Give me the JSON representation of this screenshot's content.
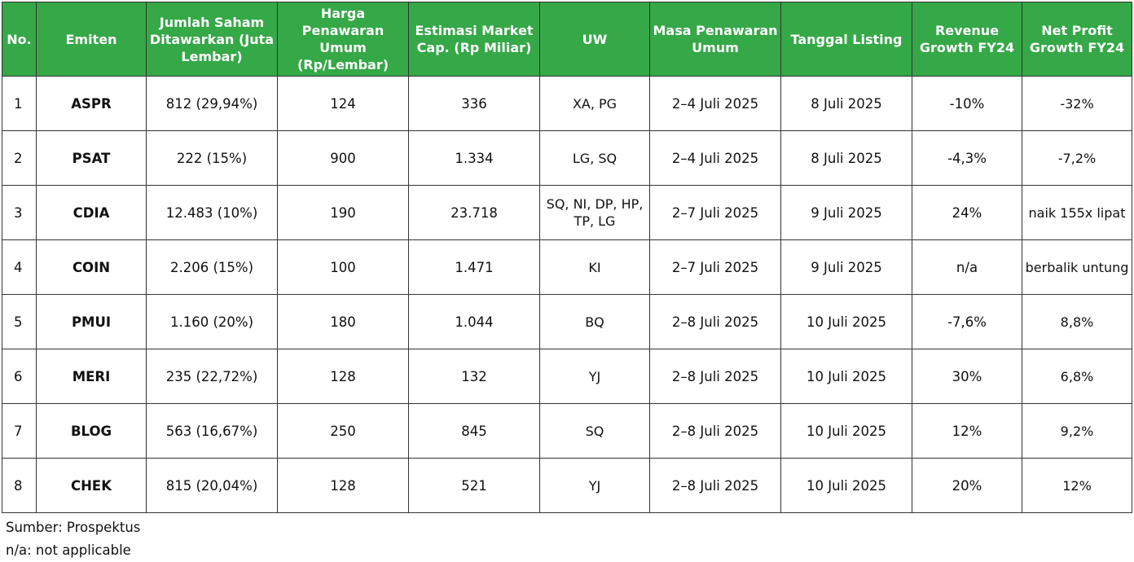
{
  "table": {
    "headers": [
      "No.",
      "Emiten",
      "Jumlah Saham Ditawarkan (Juta Lembar)",
      "Harga Penawaran Umum (Rp/Lembar)",
      "Estimasi Market Cap. (Rp Miliar)",
      "UW",
      "Masa Penawaran Umum",
      "Tanggal Listing",
      "Revenue Growth FY24",
      "Net Profit Growth FY24"
    ],
    "rows": [
      [
        "1",
        "ASPR",
        "812 (29,94%)",
        "124",
        "336",
        "XA, PG",
        "2–4 Juli 2025",
        "8 Juli 2025",
        "-10%",
        "-32%"
      ],
      [
        "2",
        "PSAT",
        "222 (15%)",
        "900",
        "1.334",
        "LG, SQ",
        "2–4 Juli 2025",
        "8 Juli 2025",
        "-4,3%",
        "-7,2%"
      ],
      [
        "3",
        "CDIA",
        "12.483 (10%)",
        "190",
        "23.718",
        "SQ, NI, DP, HP, TP, LG",
        "2–7 Juli 2025",
        "9 Juli 2025",
        "24%",
        "naik 155x lipat"
      ],
      [
        "4",
        "COIN",
        "2.206 (15%)",
        "100",
        "1.471",
        "KI",
        "2–7 Juli 2025",
        "9 Juli 2025",
        "n/a",
        "berbalik untung"
      ],
      [
        "5",
        "PMUI",
        "1.160 (20%)",
        "180",
        "1.044",
        "BQ",
        "2–8 Juli 2025",
        "10 Juli 2025",
        "-7,6%",
        "8,8%"
      ],
      [
        "6",
        "MERI",
        "235 (22,72%)",
        "128",
        "132",
        "YJ",
        "2–8 Juli 2025",
        "10 Juli 2025",
        "30%",
        "6,8%"
      ],
      [
        "7",
        "BLOG",
        "563 (16,67%)",
        "250",
        "845",
        "SQ",
        "2–8 Juli 2025",
        "10 Juli 2025",
        "12%",
        "9,2%"
      ],
      [
        "8",
        "CHEK",
        "815 (20,04%)",
        "128",
        "521",
        "YJ",
        "2–8 Juli 2025",
        "10 Juli 2025",
        "20%",
        "12%"
      ]
    ]
  },
  "notes": {
    "source": "Sumber: Prospektus",
    "na": "n/a: not applicable"
  },
  "colors": {
    "header_bg": "#35a847",
    "header_text": "#ffffff",
    "border": "#333333"
  }
}
